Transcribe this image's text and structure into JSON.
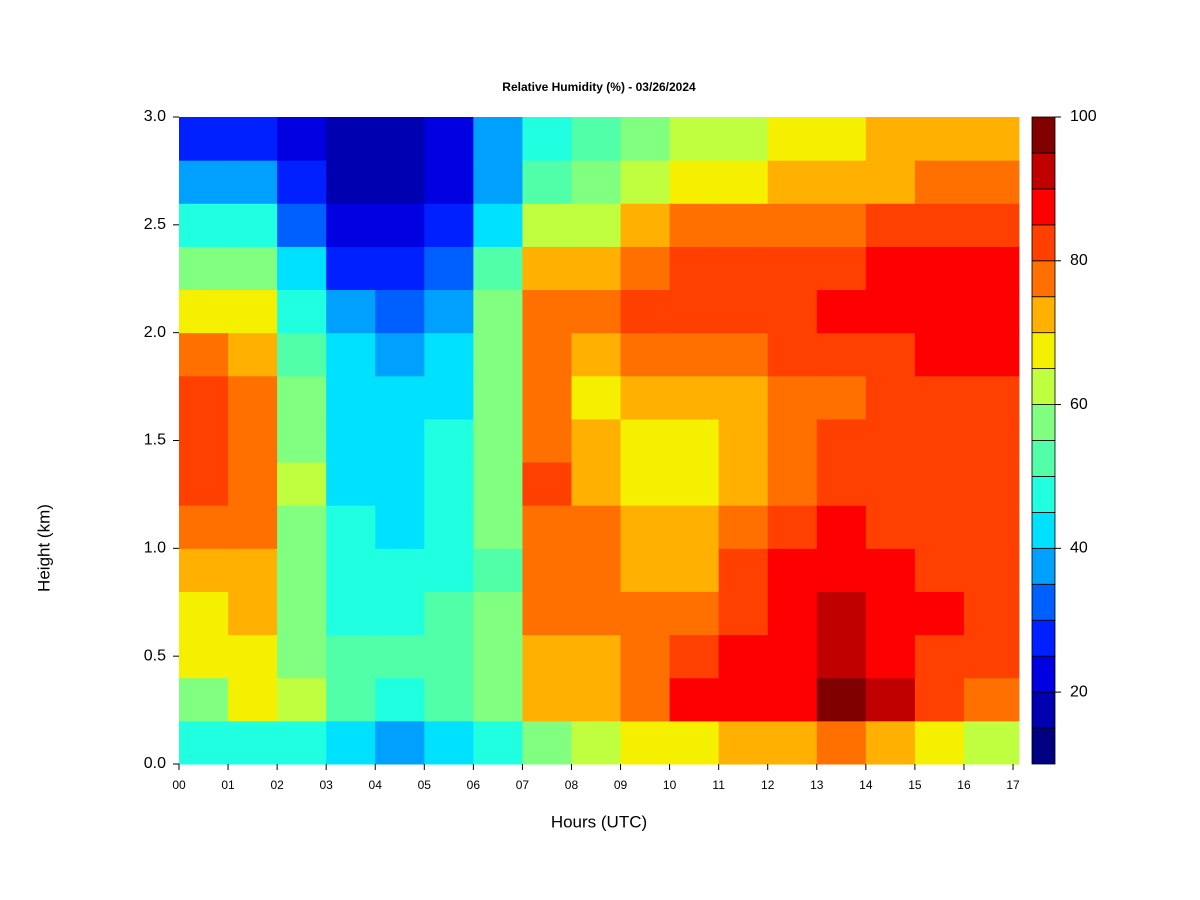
{
  "chart_data": {
    "type": "heatmap",
    "title": "Relative Humidity (%) - 03/26/2024",
    "x_label": "Hours (UTC)",
    "y_label": "Height (km)",
    "xlim": [
      0,
      17.12
    ],
    "ylim": [
      0,
      3
    ],
    "xticks": [
      {
        "value": 0,
        "label": "00"
      },
      {
        "value": 1,
        "label": "01"
      },
      {
        "value": 2,
        "label": "02"
      },
      {
        "value": 3,
        "label": "03"
      },
      {
        "value": 4,
        "label": "04"
      },
      {
        "value": 5,
        "label": "05"
      },
      {
        "value": 6,
        "label": "06"
      },
      {
        "value": 7,
        "label": "07"
      },
      {
        "value": 8,
        "label": "08"
      },
      {
        "value": 9,
        "label": "09"
      },
      {
        "value": 10,
        "label": "10"
      },
      {
        "value": 11,
        "label": "11"
      },
      {
        "value": 12,
        "label": "12"
      },
      {
        "value": 13,
        "label": "13"
      },
      {
        "value": 14,
        "label": "14"
      },
      {
        "value": 15,
        "label": "15"
      },
      {
        "value": 16,
        "label": "16"
      },
      {
        "value": 17,
        "label": "17"
      }
    ],
    "yticks": [
      {
        "value": 0,
        "label": "0.0"
      },
      0.5,
      {
        "value": 1,
        "label": "1.0"
      },
      1.5,
      {
        "value": 2,
        "label": "2.0"
      },
      2.5,
      {
        "value": 3,
        "label": "3.0"
      }
    ],
    "x": [
      0.5,
      1.5,
      2.5,
      3.5,
      4.5,
      5.5,
      6.5,
      7.5,
      8.5,
      9.5,
      10.5,
      11.5,
      12.5,
      13.5,
      14.5,
      15.5,
      16.5
    ],
    "y": [
      0.1,
      0.3,
      0.5,
      0.7,
      0.9,
      1.1,
      1.3,
      1.5,
      1.7,
      1.9,
      2.1,
      2.3,
      2.5,
      2.7,
      2.9
    ],
    "values": [
      [
        45,
        58,
        65,
        68,
        72,
        78,
        82,
        82,
        80,
        75,
        65,
        58,
        48,
        35,
        25
      ],
      [
        48,
        68,
        68,
        70,
        72,
        75,
        78,
        78,
        75,
        72,
        65,
        55,
        45,
        35,
        28
      ],
      [
        45,
        62,
        58,
        55,
        55,
        58,
        60,
        58,
        55,
        52,
        48,
        40,
        32,
        25,
        20
      ],
      [
        40,
        50,
        50,
        48,
        46,
        45,
        44,
        43,
        42,
        40,
        35,
        28,
        22,
        18,
        15
      ],
      [
        38,
        48,
        50,
        47,
        45,
        44,
        43,
        42,
        40,
        38,
        32,
        25,
        20,
        16,
        15
      ],
      [
        40,
        50,
        52,
        50,
        47,
        46,
        45,
        45,
        44,
        42,
        38,
        32,
        26,
        22,
        20
      ],
      [
        45,
        55,
        56,
        55,
        54,
        55,
        56,
        55,
        55,
        55,
        55,
        50,
        42,
        38,
        35
      ],
      [
        58,
        72,
        72,
        75,
        78,
        78,
        80,
        78,
        75,
        75,
        78,
        72,
        60,
        52,
        48
      ],
      [
        62,
        72,
        74,
        75,
        78,
        75,
        72,
        70,
        68,
        72,
        75,
        72,
        62,
        55,
        50
      ],
      [
        65,
        75,
        76,
        75,
        72,
        70,
        68,
        68,
        72,
        78,
        82,
        78,
        72,
        62,
        55
      ],
      [
        68,
        85,
        82,
        75,
        72,
        70,
        68,
        68,
        70,
        75,
        82,
        80,
        75,
        68,
        60
      ],
      [
        70,
        88,
        85,
        80,
        80,
        75,
        70,
        70,
        72,
        78,
        82,
        82,
        75,
        68,
        62
      ],
      [
        72,
        88,
        85,
        85,
        85,
        82,
        78,
        78,
        75,
        80,
        84,
        82,
        76,
        70,
        65
      ],
      [
        75,
        95,
        92,
        90,
        88,
        85,
        82,
        80,
        78,
        82,
        85,
        84,
        78,
        72,
        68
      ],
      [
        72,
        92,
        88,
        86,
        85,
        84,
        84,
        82,
        80,
        84,
        86,
        85,
        80,
        74,
        70
      ],
      [
        68,
        82,
        84,
        85,
        84,
        82,
        82,
        82,
        84,
        86,
        88,
        86,
        82,
        76,
        72
      ],
      [
        62,
        75,
        80,
        82,
        82,
        80,
        80,
        82,
        84,
        85,
        88,
        86,
        82,
        76,
        72
      ]
    ],
    "colorbar": {
      "levels": [
        10,
        15,
        20,
        25,
        30,
        35,
        40,
        45,
        50,
        55,
        60,
        65,
        70,
        75,
        80,
        85,
        90,
        95,
        100
      ],
      "colors": [
        "#000080",
        "#0000b0",
        "#0000e0",
        "#0020ff",
        "#0060ff",
        "#00a0ff",
        "#00e0ff",
        "#20ffe0",
        "#50ffa8",
        "#80ff80",
        "#c0ff40",
        "#f5f000",
        "#ffb000",
        "#ff7000",
        "#ff4000",
        "#ff0000",
        "#c00000",
        "#800000"
      ],
      "ticks": [
        20,
        40,
        60,
        80,
        100
      ]
    }
  }
}
